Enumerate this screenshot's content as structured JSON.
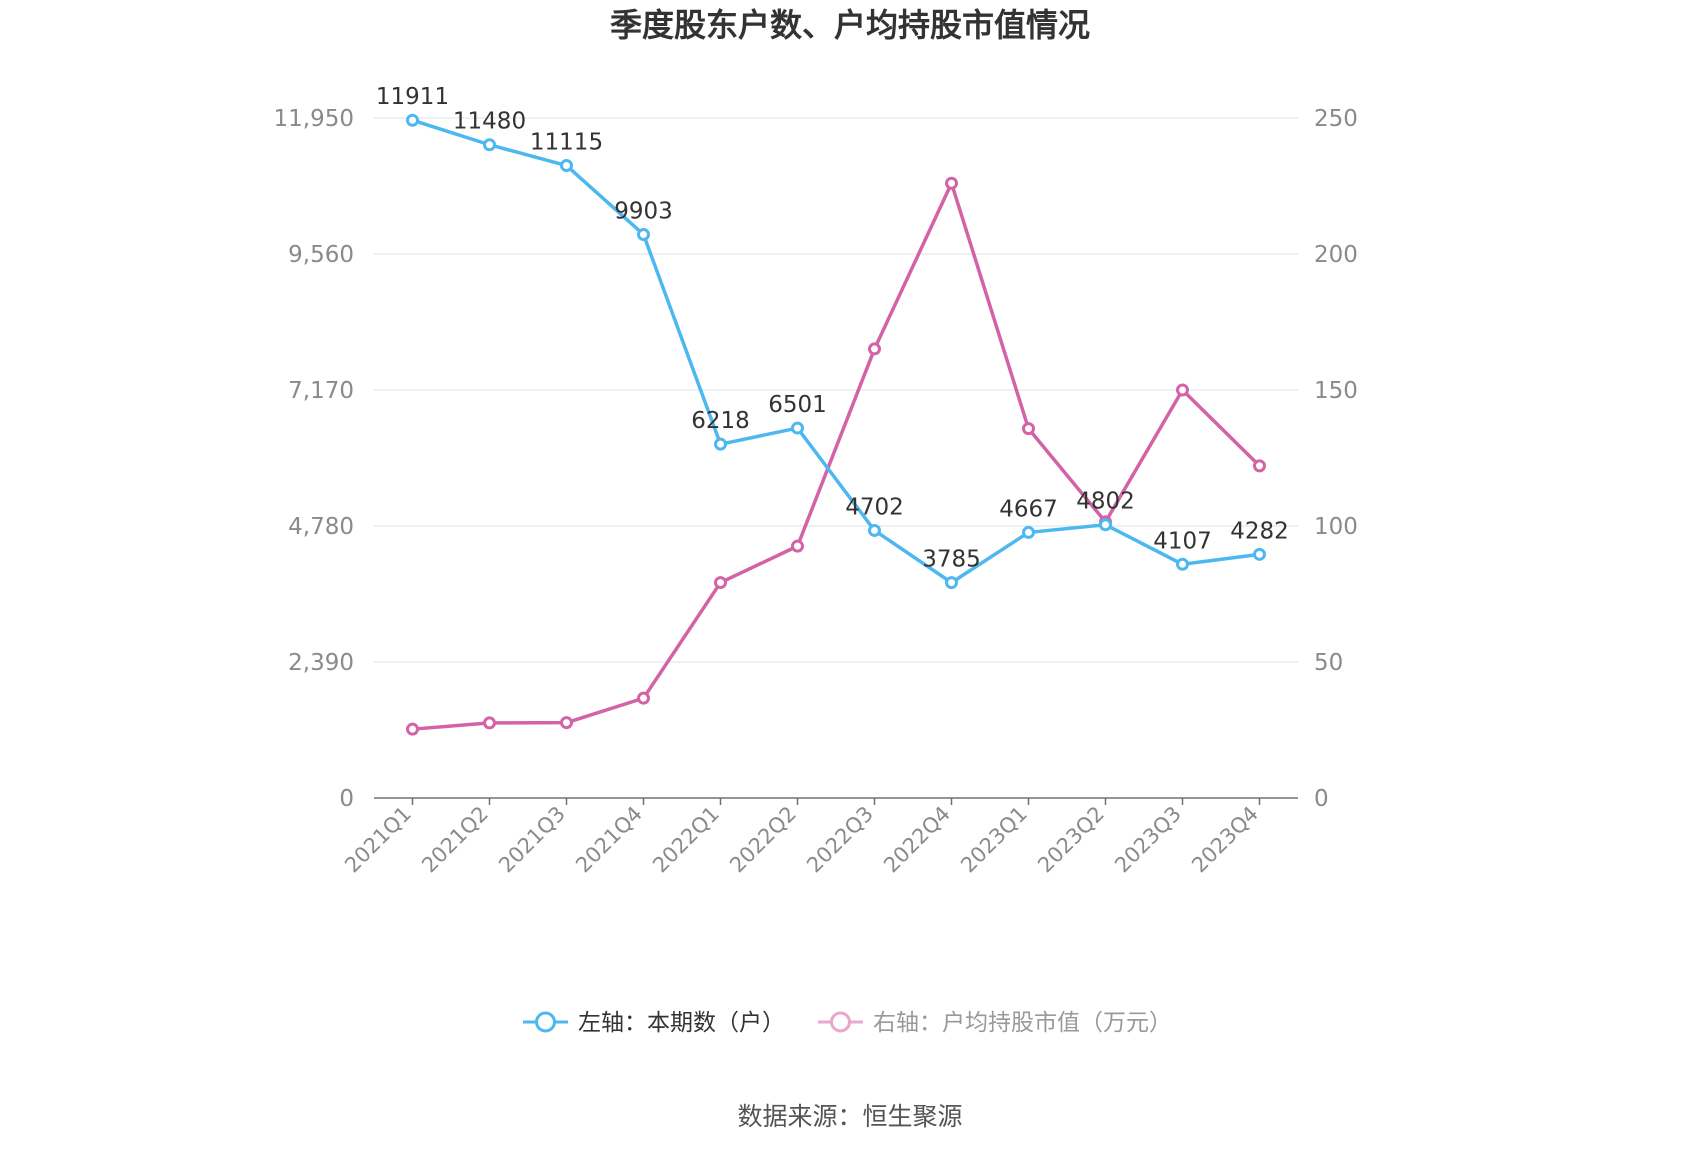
{
  "chart_data": {
    "type": "line",
    "title": "季度股东户数、户均持股市值情况",
    "categories": [
      "2021Q1",
      "2021Q2",
      "2021Q3",
      "2021Q4",
      "2022Q1",
      "2022Q2",
      "2022Q3",
      "2022Q4",
      "2023Q1",
      "2023Q2",
      "2023Q3",
      "2023Q4"
    ],
    "left_axis": {
      "ticks": [
        "0",
        "2,390",
        "4,780",
        "7,170",
        "9,560",
        "11,950"
      ],
      "ylim": [
        0,
        11950
      ]
    },
    "right_axis": {
      "ticks": [
        "0",
        "50",
        "100",
        "150",
        "200",
        "250"
      ],
      "ylim": [
        0,
        250
      ]
    },
    "grid": true,
    "legend_position": "bottom",
    "series": [
      {
        "name": "左轴：本期数（户）",
        "axis": "left",
        "color": "#4db8f0",
        "values": [
          11911,
          11480,
          11115,
          9903,
          6218,
          6501,
          4702,
          3785,
          4667,
          4802,
          4107,
          4282
        ],
        "labels": [
          "11911",
          "11480",
          "11115",
          "9903",
          "6218",
          "6501",
          "4702",
          "3785",
          "4667",
          "4802",
          "4107",
          "4282"
        ]
      },
      {
        "name": "右轴：户均持股市值（万元）",
        "axis": "right",
        "color": "#d462a6",
        "values": [
          25.3,
          27.6,
          27.7,
          36.7,
          79.2,
          92.6,
          165.1,
          226.0,
          135.8,
          101.5,
          150.0,
          122.1
        ]
      }
    ],
    "source": "数据来源：恒生聚源"
  }
}
